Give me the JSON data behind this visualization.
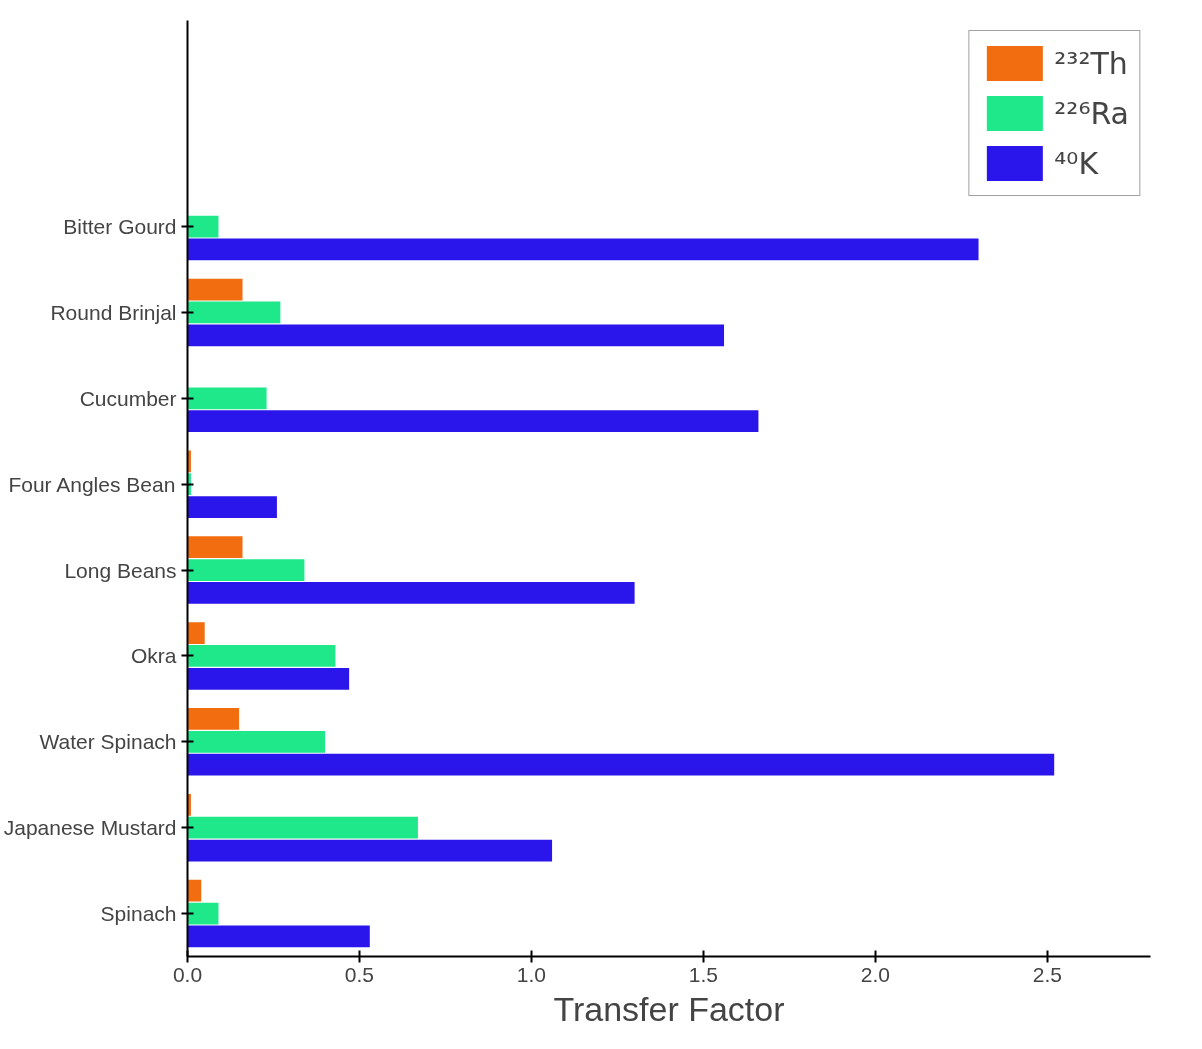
{
  "chart_data": {
    "type": "bar",
    "orientation": "horizontal",
    "xlabel": "Transfer Factor",
    "categories": [
      "Bitter Gourd",
      "Round Brinjal",
      "Cucumber",
      "Four Angles Bean",
      "Long Beans",
      "Okra",
      "Water Spinach",
      "Japanese Mustard",
      "Spinach"
    ],
    "series": [
      {
        "name": "²³²Th",
        "color": "#f26c10",
        "values": [
          null,
          0.16,
          null,
          0.01,
          0.16,
          0.05,
          0.15,
          0.01,
          0.04
        ]
      },
      {
        "name": "²²⁶Ra",
        "color": "#1ee88a",
        "values": [
          0.09,
          0.27,
          0.23,
          0.01,
          0.34,
          0.43,
          0.4,
          0.67,
          0.09
        ]
      },
      {
        "name": "⁴⁰K",
        "color": "#2a16ea",
        "values": [
          2.3,
          1.56,
          1.66,
          0.26,
          1.3,
          0.47,
          2.52,
          1.06,
          0.53
        ]
      }
    ],
    "xlim": [
      0,
      2.8
    ],
    "xticks": [
      {
        "value": 0,
        "label": "0.0"
      },
      0.5,
      {
        "value": 1,
        "label": "1.0"
      },
      1.5,
      {
        "value": 2,
        "label": "2.0"
      },
      2.5
    ],
    "grid": false,
    "legend": "top right"
  }
}
